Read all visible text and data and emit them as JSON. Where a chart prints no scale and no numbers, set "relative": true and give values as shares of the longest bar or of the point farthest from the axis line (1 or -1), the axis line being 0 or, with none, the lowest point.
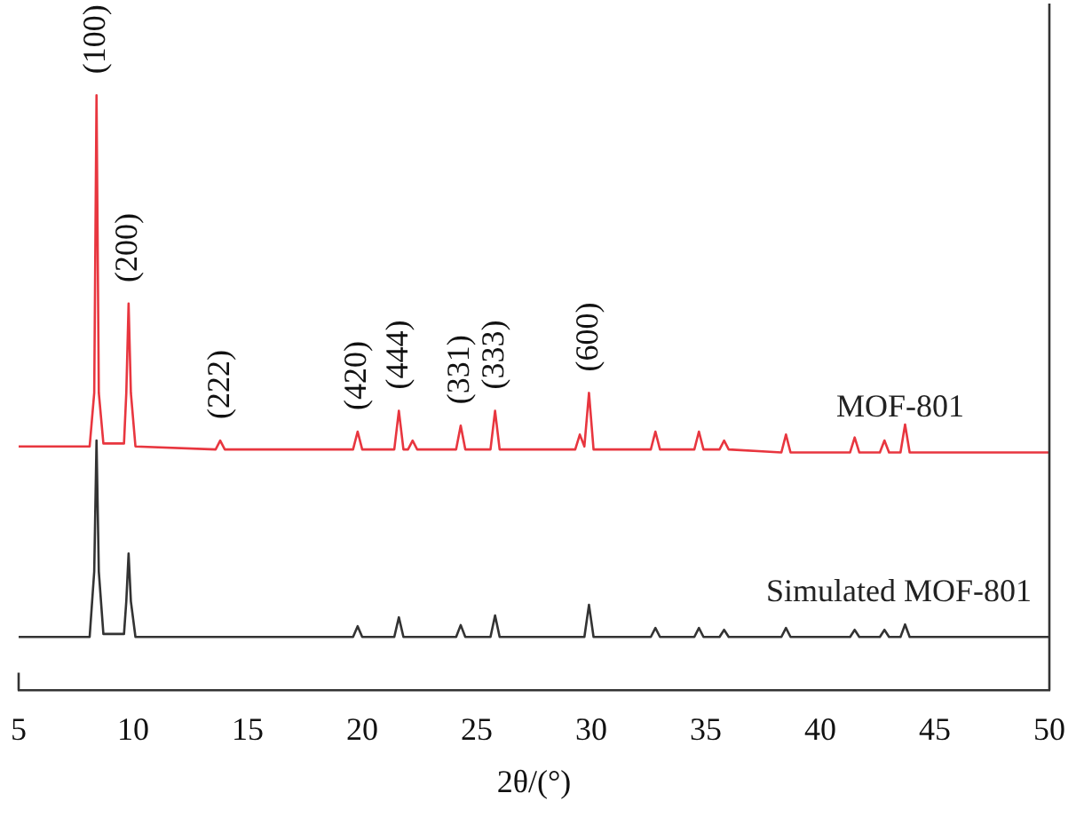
{
  "chart_data": {
    "type": "line",
    "relative": true,
    "xlabel": "2θ/(°)",
    "xlim": [
      5,
      50
    ],
    "xticks": [
      5,
      10,
      15,
      20,
      25,
      30,
      35,
      40,
      45,
      50
    ],
    "grid": false,
    "legend": false,
    "marker": "none",
    "line_style": "solid",
    "annotations": [
      {
        "text": "(100)",
        "x": 8.4,
        "y": 1.0
      },
      {
        "text": "(200)",
        "x": 9.8,
        "y": 0.65
      },
      {
        "text": "(222)",
        "x": 13.8,
        "y": 0.42
      },
      {
        "text": "(420)",
        "x": 19.8,
        "y": 0.435
      },
      {
        "text": "(444)",
        "x": 21.6,
        "y": 0.47
      },
      {
        "text": "(331)",
        "x": 24.3,
        "y": 0.445
      },
      {
        "text": "(333)",
        "x": 25.8,
        "y": 0.47
      },
      {
        "text": "(600)",
        "x": 29.9,
        "y": 0.5
      }
    ],
    "series": [
      {
        "name": "MOF-801",
        "color": "#e8363f",
        "x": [
          5,
          8.1,
          8.3,
          8.4,
          8.5,
          8.7,
          9.6,
          9.7,
          9.8,
          9.9,
          10.1,
          13.6,
          13.8,
          14.0,
          19.6,
          19.8,
          20.0,
          21.4,
          21.6,
          21.8,
          22.0,
          22.2,
          22.4,
          24.1,
          24.3,
          24.5,
          25.6,
          25.8,
          26.0,
          29.3,
          29.5,
          29.7,
          29.9,
          30.1,
          32.6,
          32.8,
          33.0,
          34.5,
          34.7,
          34.9,
          35.6,
          35.8,
          36.0,
          38.3,
          38.5,
          38.7,
          41.3,
          41.5,
          41.7,
          42.6,
          42.8,
          43.0,
          43.5,
          43.7,
          43.9,
          50
        ],
        "values": [
          0.41,
          0.41,
          0.5,
          1.0,
          0.5,
          0.415,
          0.415,
          0.5,
          0.65,
          0.5,
          0.41,
          0.405,
          0.42,
          0.405,
          0.405,
          0.435,
          0.405,
          0.405,
          0.47,
          0.405,
          0.405,
          0.42,
          0.405,
          0.405,
          0.445,
          0.405,
          0.405,
          0.47,
          0.405,
          0.405,
          0.43,
          0.41,
          0.5,
          0.405,
          0.405,
          0.435,
          0.405,
          0.405,
          0.435,
          0.405,
          0.405,
          0.42,
          0.405,
          0.4,
          0.43,
          0.4,
          0.4,
          0.425,
          0.4,
          0.4,
          0.42,
          0.4,
          0.4,
          0.447,
          0.4,
          0.4
        ]
      },
      {
        "name": "Simulated MOF-801",
        "color": "#333333",
        "x": [
          5,
          8.1,
          8.3,
          8.4,
          8.5,
          8.7,
          9.6,
          9.7,
          9.8,
          9.9,
          10.1,
          19.6,
          19.8,
          20.0,
          21.4,
          21.6,
          21.8,
          24.1,
          24.3,
          24.5,
          25.6,
          25.8,
          26.0,
          29.7,
          29.9,
          30.1,
          32.6,
          32.8,
          33.0,
          34.5,
          34.7,
          34.9,
          35.6,
          35.8,
          36.0,
          38.3,
          38.5,
          38.7,
          41.3,
          41.5,
          41.7,
          42.6,
          42.8,
          43.0,
          43.5,
          43.7,
          43.9,
          50
        ],
        "values": [
          0.09,
          0.09,
          0.2,
          0.42,
          0.2,
          0.095,
          0.095,
          0.15,
          0.23,
          0.15,
          0.09,
          0.09,
          0.108,
          0.09,
          0.09,
          0.123,
          0.09,
          0.09,
          0.11,
          0.09,
          0.09,
          0.126,
          0.09,
          0.09,
          0.144,
          0.09,
          0.09,
          0.105,
          0.09,
          0.09,
          0.105,
          0.09,
          0.09,
          0.102,
          0.09,
          0.09,
          0.105,
          0.09,
          0.09,
          0.102,
          0.09,
          0.09,
          0.102,
          0.09,
          0.09,
          0.111,
          0.09,
          0.09
        ]
      }
    ]
  }
}
